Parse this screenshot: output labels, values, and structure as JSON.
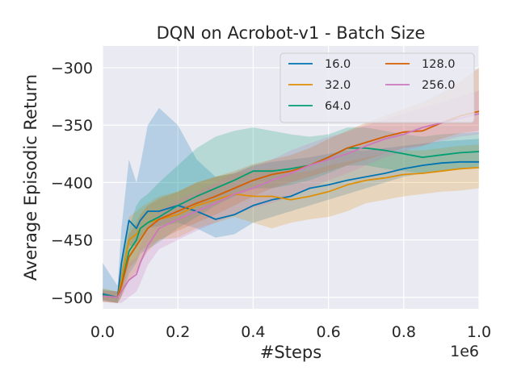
{
  "chart_data": {
    "type": "line",
    "title": "DQN on Acrobot-v1 - Batch Size",
    "xlabel": "#Steps",
    "ylabel": "Average Episodic Return",
    "x_offset_label": "1e6",
    "xlim": [
      0.0,
      1.0
    ],
    "ylim": [
      -510,
      -281
    ],
    "xticks": [
      0.0,
      0.2,
      0.4,
      0.6,
      0.8,
      1.0
    ],
    "xtick_labels": [
      "0.0",
      "0.2",
      "0.4",
      "0.6",
      "0.8",
      "1.0"
    ],
    "yticks": [
      -500,
      -450,
      -400,
      -350,
      -300
    ],
    "ytick_labels": [
      "−500",
      "−450",
      "−400",
      "−350",
      "−300"
    ],
    "grid": true,
    "legend_position": "top-right",
    "legend_columns": 2,
    "x": [
      0.0,
      0.04,
      0.05,
      0.07,
      0.09,
      0.1,
      0.12,
      0.15,
      0.2,
      0.25,
      0.3,
      0.35,
      0.4,
      0.45,
      0.5,
      0.55,
      0.6,
      0.65,
      0.7,
      0.75,
      0.8,
      0.85,
      0.9,
      0.95,
      1.0
    ],
    "series": [
      {
        "name": "16.0",
        "color": "#0173b2",
        "values": [
          -497,
          -500,
          -470,
          -433,
          -440,
          -433,
          -425,
          -425,
          -420,
          -425,
          -432,
          -428,
          -420,
          -415,
          -412,
          -405,
          -402,
          -398,
          -395,
          -392,
          -388,
          -385,
          -383,
          -382,
          -382
        ],
        "lower": [
          -502,
          -505,
          -485,
          -455,
          -455,
          -448,
          -440,
          -438,
          -435,
          -440,
          -448,
          -445,
          -435,
          -430,
          -425,
          -420,
          -415,
          -410,
          -405,
          -400,
          -395,
          -392,
          -390,
          -388,
          -387
        ],
        "upper": [
          -470,
          -490,
          -440,
          -380,
          -400,
          -385,
          -350,
          -335,
          -350,
          -380,
          -395,
          -392,
          -385,
          -382,
          -380,
          -378,
          -375,
          -372,
          -372,
          -370,
          -368,
          -366,
          -364,
          -363,
          -362
        ]
      },
      {
        "name": "32.0",
        "color": "#de8f05",
        "values": [
          -498,
          -500,
          -485,
          -450,
          -445,
          -440,
          -435,
          -432,
          -428,
          -420,
          -415,
          -410,
          -412,
          -412,
          -415,
          -412,
          -408,
          -402,
          -398,
          -396,
          -393,
          -392,
          -390,
          -388,
          -387
        ],
        "lower": [
          -503,
          -505,
          -498,
          -475,
          -468,
          -460,
          -455,
          -450,
          -448,
          -440,
          -435,
          -430,
          -435,
          -440,
          -435,
          -432,
          -430,
          -425,
          -418,
          -415,
          -412,
          -410,
          -408,
          -407,
          -405
        ],
        "upper": [
          -492,
          -495,
          -470,
          -430,
          -425,
          -422,
          -418,
          -412,
          -408,
          -400,
          -395,
          -392,
          -390,
          -388,
          -392,
          -390,
          -385,
          -382,
          -378,
          -375,
          -372,
          -372,
          -370,
          -368,
          -367
        ]
      },
      {
        "name": "64.0",
        "color": "#029e73",
        "values": [
          -498,
          -500,
          -490,
          -460,
          -450,
          -440,
          -435,
          -430,
          -420,
          -412,
          -405,
          -398,
          -390,
          -390,
          -388,
          -385,
          -378,
          -370,
          -370,
          -372,
          -375,
          -378,
          -376,
          -374,
          -373
        ],
        "lower": [
          -503,
          -505,
          -500,
          -480,
          -470,
          -462,
          -458,
          -452,
          -440,
          -430,
          -420,
          -412,
          -405,
          -405,
          -402,
          -398,
          -392,
          -385,
          -385,
          -388,
          -390,
          -392,
          -390,
          -388,
          -386
        ],
        "upper": [
          -493,
          -495,
          -470,
          -440,
          -420,
          -415,
          -410,
          -400,
          -385,
          -370,
          -360,
          -355,
          -352,
          -355,
          -358,
          -360,
          -358,
          -352,
          -352,
          -355,
          -358,
          -360,
          -358,
          -357,
          -356
        ]
      },
      {
        "name": "128.0",
        "color": "#d55e00",
        "values": [
          -499,
          -500,
          -490,
          -465,
          -455,
          -450,
          -440,
          -432,
          -425,
          -418,
          -412,
          -405,
          -398,
          -393,
          -390,
          -385,
          -378,
          -370,
          -365,
          -360,
          -356,
          -355,
          -348,
          -342,
          -338
        ],
        "lower": [
          -504,
          -505,
          -500,
          -485,
          -478,
          -470,
          -460,
          -450,
          -442,
          -435,
          -428,
          -420,
          -412,
          -405,
          -400,
          -395,
          -390,
          -385,
          -380,
          -375,
          -370,
          -368,
          -362,
          -357,
          -355
        ],
        "upper": [
          -494,
          -495,
          -478,
          -445,
          -435,
          -428,
          -420,
          -414,
          -408,
          -400,
          -395,
          -390,
          -384,
          -380,
          -376,
          -370,
          -362,
          -355,
          -348,
          -342,
          -336,
          -330,
          -322,
          -312,
          -300
        ]
      },
      {
        "name": "256.0",
        "color": "#cc78bc",
        "values": [
          -499,
          -500,
          -495,
          -485,
          -480,
          -470,
          -455,
          -440,
          -432,
          -425,
          -418,
          -410,
          -405,
          -398,
          -392,
          -385,
          -380,
          -375,
          -368,
          -362,
          -358,
          -352,
          -348,
          -344,
          -340
        ],
        "lower": [
          -504,
          -505,
          -505,
          -500,
          -495,
          -488,
          -472,
          -458,
          -450,
          -442,
          -435,
          -428,
          -422,
          -418,
          -412,
          -405,
          -398,
          -392,
          -385,
          -378,
          -373,
          -368,
          -364,
          -360,
          -358
        ],
        "upper": [
          -494,
          -495,
          -485,
          -470,
          -465,
          -455,
          -440,
          -425,
          -415,
          -408,
          -400,
          -392,
          -386,
          -380,
          -372,
          -366,
          -360,
          -356,
          -350,
          -345,
          -340,
          -335,
          -330,
          -325,
          -320
        ]
      }
    ]
  }
}
